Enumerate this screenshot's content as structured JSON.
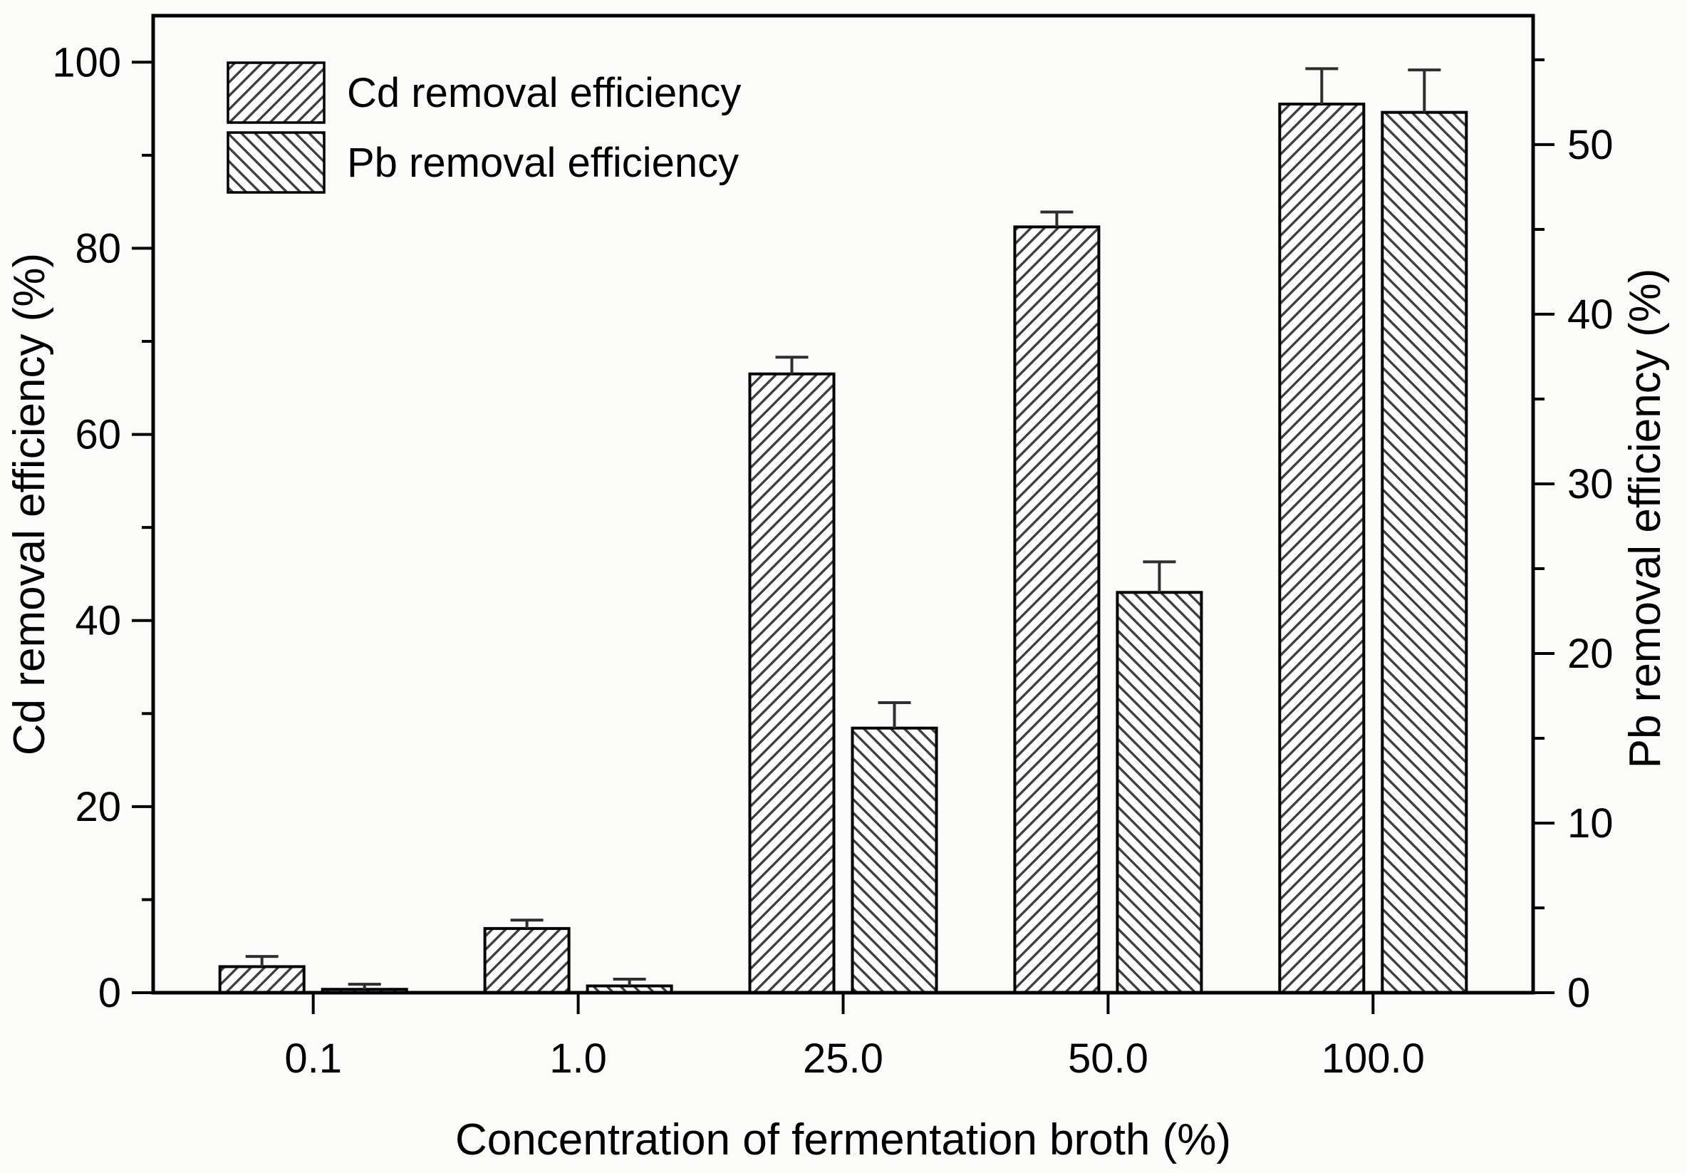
{
  "figure": {
    "background": "#fbfbf9",
    "ink": "#000000",
    "hatch_color": "#3f3f3f",
    "bar_fill": "#ffffff"
  },
  "legend": {
    "position": "top-left",
    "items": [
      {
        "label": "Cd removal efficiency",
        "hatch": "forward-diagonal"
      },
      {
        "label": "Pb removal efficiency",
        "hatch": "backward-diagonal"
      }
    ]
  },
  "chart_data": {
    "type": "bar",
    "title": "",
    "categories": [
      "0.1",
      "1.0",
      "25.0",
      "50.0",
      "100.0"
    ],
    "series": [
      {
        "name": "Cd removal efficiency",
        "axis": "left",
        "hatch": "forward-diagonal",
        "values": [
          2.8,
          6.9,
          66.5,
          82.3,
          95.5
        ],
        "errors": [
          1.1,
          0.9,
          1.8,
          1.6,
          3.8
        ]
      },
      {
        "name": "Pb removal efficiency",
        "axis": "right",
        "hatch": "backward-diagonal",
        "values": [
          0.2,
          0.4,
          15.6,
          23.6,
          51.9
        ],
        "errors": [
          0.3,
          0.4,
          1.5,
          1.8,
          2.5
        ]
      }
    ],
    "xlabel": "Concentration of fermentation broth (%)",
    "left_axis": {
      "label": "Cd removal efficiency (%)",
      "range": [
        0,
        105
      ],
      "major_ticks": [
        0,
        20,
        40,
        60,
        80,
        100
      ],
      "minor_ticks": [
        10,
        30,
        50,
        70,
        90
      ]
    },
    "right_axis": {
      "label": "Pb removal efficiency (%)",
      "range": [
        0,
        57.6
      ],
      "major_ticks": [
        0,
        10,
        20,
        30,
        40,
        50
      ],
      "minor_ticks": [
        5,
        15,
        25,
        35,
        45,
        55
      ]
    },
    "grid": false,
    "error_bars": "upper",
    "legend_position": "top-left"
  }
}
